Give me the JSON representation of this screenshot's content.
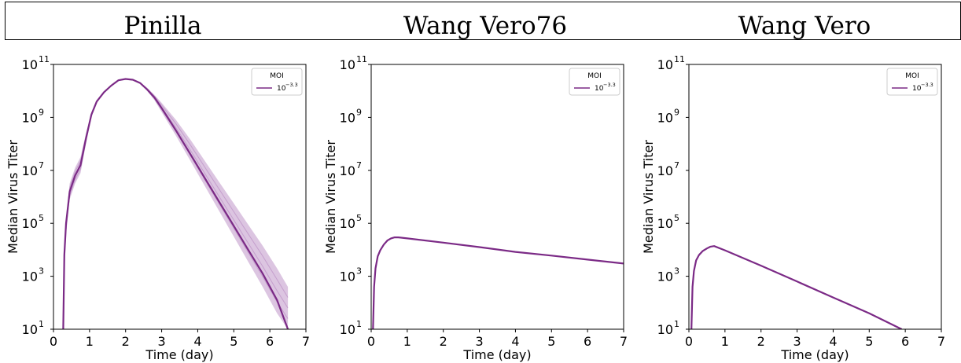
{
  "panel_titles": [
    "Pinilla",
    "Wang Vero76",
    "Wang Vero"
  ],
  "colors": {
    "series": "#7B2A86",
    "band": "#9B59A8",
    "axis": "#000000"
  },
  "chart_data": [
    {
      "type": "line",
      "title": "Pinilla",
      "xlabel": "Time (day)",
      "ylabel": "Median Virus Titer",
      "xlim": [
        0,
        7
      ],
      "ylim_log10": [
        1,
        11
      ],
      "y_scale": "log",
      "x_ticks": [
        "0",
        "1",
        "2",
        "3",
        "4",
        "5",
        "6",
        "7"
      ],
      "y_ticks": [
        "10",
        "10",
        "10",
        "10",
        "10",
        "10"
      ],
      "y_tick_exponents": [
        "1",
        "3",
        "5",
        "7",
        "9",
        "11"
      ],
      "legend": {
        "title": "MOI",
        "label_base": "10",
        "label_exponent": "−3.3",
        "position": "top-right"
      },
      "series": [
        {
          "name": "10^-3.3",
          "x": [
            0.27,
            0.3,
            0.35,
            0.45,
            0.6,
            0.75,
            0.9,
            1.05,
            1.2,
            1.4,
            1.6,
            1.8,
            2.0,
            2.2,
            2.4,
            2.6,
            2.8,
            3.0,
            3.4,
            3.8,
            4.2,
            4.6,
            5.0,
            5.4,
            5.8,
            6.2,
            6.5
          ],
          "log10_y": [
            1.0,
            3.8,
            5.0,
            6.2,
            6.8,
            7.2,
            8.2,
            9.1,
            9.6,
            9.95,
            10.2,
            10.4,
            10.45,
            10.42,
            10.3,
            10.05,
            9.75,
            9.35,
            8.5,
            7.6,
            6.7,
            5.8,
            4.9,
            4.0,
            3.1,
            2.1,
            1.0
          ]
        }
      ],
      "band_upper_log10": [
        1.0,
        3.9,
        5.2,
        6.5,
        7.1,
        7.5,
        8.4,
        9.2,
        9.65,
        9.97,
        10.22,
        10.41,
        10.46,
        10.43,
        10.33,
        10.12,
        9.85,
        9.55,
        8.9,
        8.15,
        7.35,
        6.55,
        5.75,
        4.95,
        4.15,
        3.3,
        2.6
      ],
      "band_lower_log10": [
        1.0,
        3.5,
        4.6,
        5.9,
        6.5,
        6.9,
        8.0,
        9.0,
        9.55,
        9.93,
        10.18,
        10.39,
        10.44,
        10.41,
        10.28,
        10.0,
        9.65,
        9.2,
        8.3,
        7.35,
        6.4,
        5.45,
        4.5,
        3.55,
        2.6,
        1.6,
        1.0
      ]
    },
    {
      "type": "line",
      "title": "Wang Vero76",
      "xlabel": "Time (day)",
      "ylabel": "Median Virus Titer",
      "xlim": [
        0,
        7
      ],
      "ylim_log10": [
        1,
        11
      ],
      "y_scale": "log",
      "x_ticks": [
        "0",
        "1",
        "2",
        "3",
        "4",
        "5",
        "6",
        "7"
      ],
      "y_ticks": [
        "10",
        "10",
        "10",
        "10",
        "10",
        "10"
      ],
      "y_tick_exponents": [
        "1",
        "3",
        "5",
        "7",
        "9",
        "11"
      ],
      "legend": {
        "title": "MOI",
        "label_base": "10",
        "label_exponent": "−3.3",
        "position": "top-right"
      },
      "series": [
        {
          "name": "10^-3.3",
          "x": [
            0.05,
            0.08,
            0.12,
            0.18,
            0.25,
            0.35,
            0.45,
            0.55,
            0.65,
            0.75,
            1.0,
            2.0,
            3.0,
            4.0,
            5.0,
            6.0,
            7.0
          ],
          "log10_y": [
            1.0,
            2.6,
            3.3,
            3.75,
            3.98,
            4.2,
            4.35,
            4.43,
            4.47,
            4.47,
            4.43,
            4.27,
            4.1,
            3.92,
            3.78,
            3.63,
            3.48
          ]
        }
      ]
    },
    {
      "type": "line",
      "title": "Wang Vero",
      "xlabel": "Time (day)",
      "ylabel": "Median Virus Titer",
      "xlim": [
        0,
        7
      ],
      "ylim_log10": [
        1,
        11
      ],
      "y_scale": "log",
      "x_ticks": [
        "0",
        "1",
        "2",
        "3",
        "4",
        "5",
        "6",
        "7"
      ],
      "y_ticks": [
        "10",
        "10",
        "10",
        "10",
        "10",
        "10"
      ],
      "y_tick_exponents": [
        "1",
        "3",
        "5",
        "7",
        "9",
        "11"
      ],
      "legend": {
        "title": "MOI",
        "label_base": "10",
        "label_exponent": "−3.3",
        "position": "top-right"
      },
      "series": [
        {
          "name": "10^-3.3",
          "x": [
            0.07,
            0.1,
            0.14,
            0.2,
            0.28,
            0.38,
            0.5,
            0.6,
            0.7,
            1.0,
            2.0,
            3.0,
            4.0,
            5.0,
            5.9
          ],
          "log10_y": [
            1.0,
            2.6,
            3.2,
            3.6,
            3.8,
            3.95,
            4.05,
            4.12,
            4.14,
            3.98,
            3.4,
            2.8,
            2.2,
            1.6,
            1.0
          ]
        }
      ]
    }
  ]
}
